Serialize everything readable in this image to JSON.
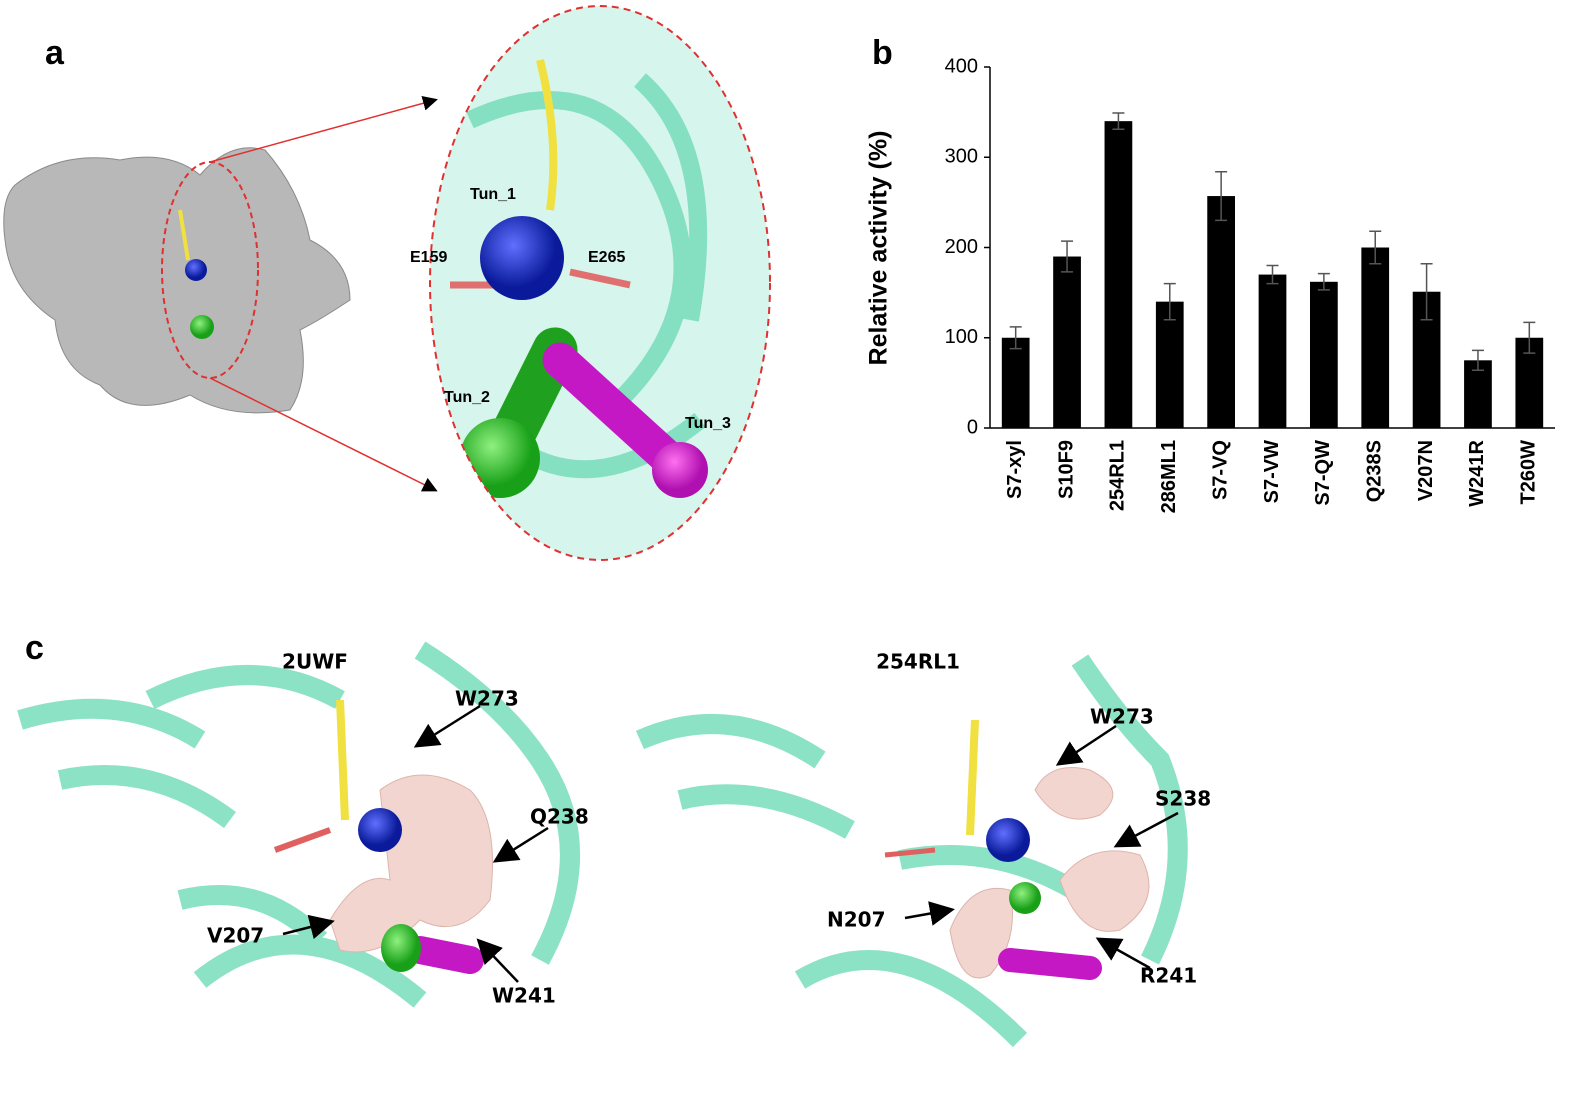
{
  "panel_labels": [
    "a",
    "b",
    "c"
  ],
  "panel_a": {
    "labels": [
      "Tun_1",
      "E159",
      "E265",
      "Tun_2",
      "Tun_3"
    ]
  },
  "chart_data": {
    "type": "bar",
    "y_label": "Relative activity (%)",
    "categories": [
      "S7-xyl",
      "S10F9",
      "254RL1",
      "286ML1",
      "S7-VQ",
      "S7-VW",
      "S7-QW",
      "Q238S",
      "V207N",
      "W241R",
      "T260W"
    ],
    "values": [
      100,
      190,
      340,
      140,
      257,
      170,
      162,
      200,
      151,
      75,
      100
    ],
    "errors": [
      12,
      17,
      9,
      20,
      27,
      10,
      9,
      18,
      31,
      11,
      17
    ],
    "color": "#000000",
    "ylim": [
      0,
      400
    ],
    "yticks": [
      0,
      100,
      200,
      300,
      400
    ]
  },
  "panel_c": {
    "left": {
      "title": "2UWF",
      "labels": [
        "W273",
        "Q238",
        "V207",
        "W241"
      ]
    },
    "right": {
      "title": "254RL1",
      "labels": [
        "W273",
        "S238",
        "N207",
        "R241"
      ]
    }
  }
}
